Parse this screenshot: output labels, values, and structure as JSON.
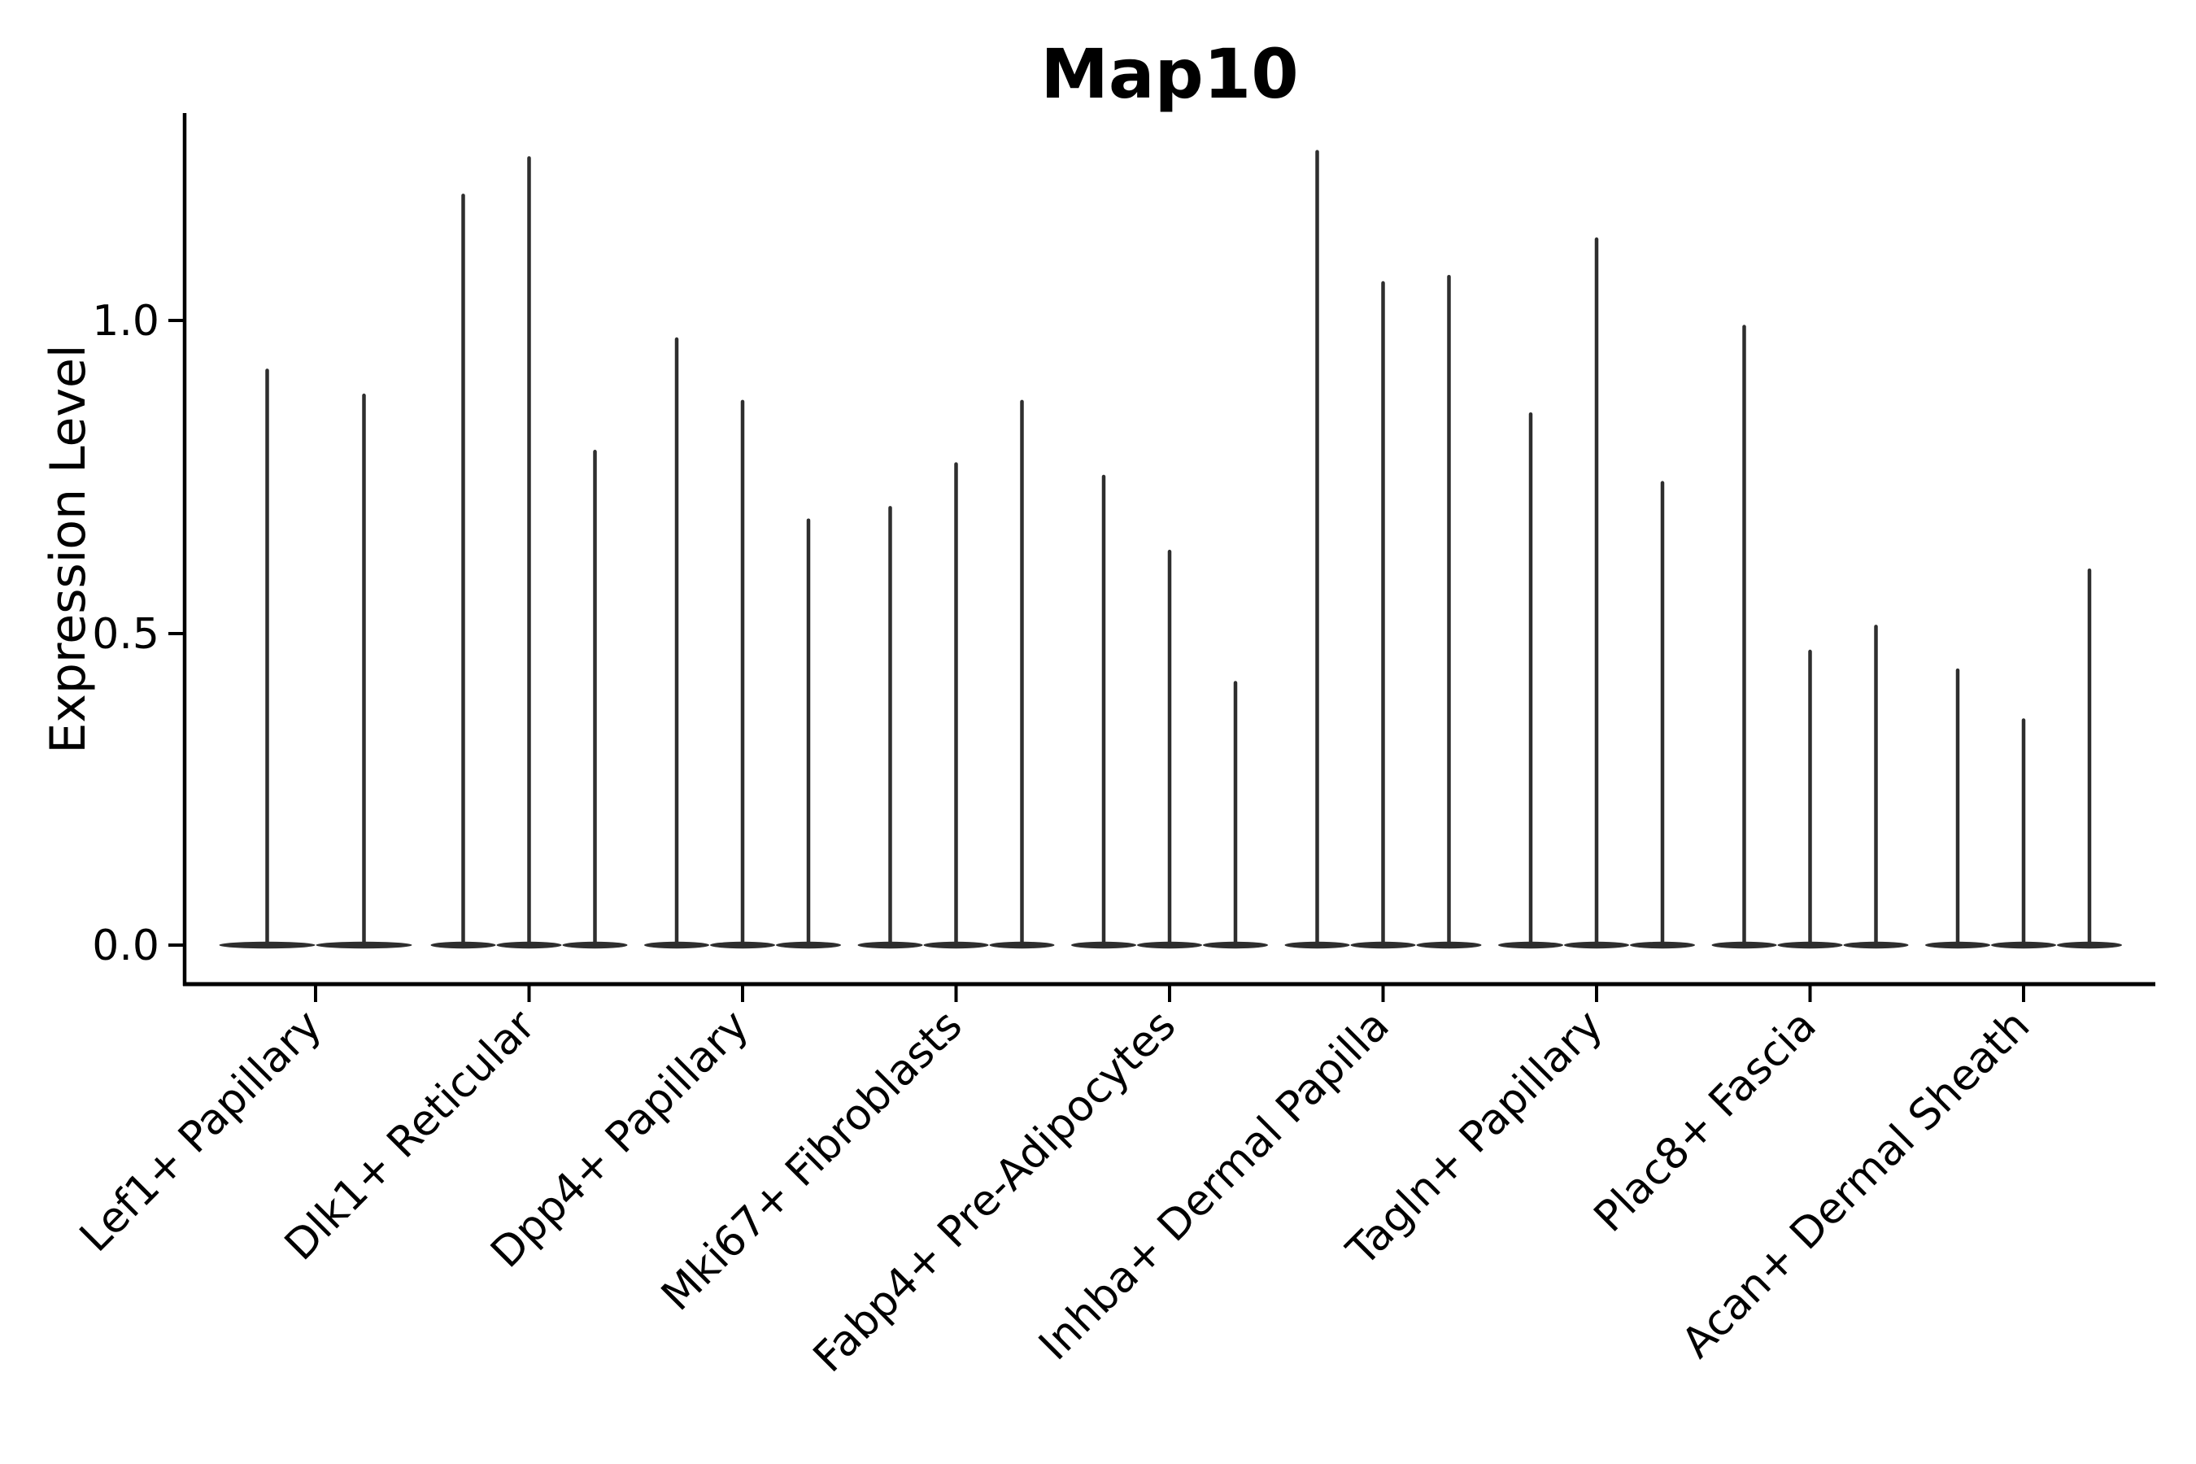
{
  "chart_data": {
    "type": "violin",
    "title": "Map10",
    "ylabel": "Expression Level",
    "xlabel": "",
    "ytick_labels": [
      "0.0",
      "0.5",
      "1.0"
    ],
    "ytick_values": [
      0.0,
      0.5,
      1.0
    ],
    "ylim": [
      -0.06,
      1.33
    ],
    "grid": false,
    "legend": "none",
    "violin_baseline_value": 0.0,
    "colors": {
      "violin": "#2e2e2e",
      "axis": "#000000",
      "background": "#ffffff"
    },
    "groups": [
      {
        "label": "Lef1+ Papillary",
        "violin_maxima": [
          0.92,
          0.88
        ]
      },
      {
        "label": "Dlk1+ Reticular",
        "violin_maxima": [
          1.2,
          1.26,
          0.79
        ]
      },
      {
        "label": "Dpp4+ Papillary",
        "violin_maxima": [
          0.97,
          0.87,
          0.68
        ]
      },
      {
        "label": "Mki67+ Fibroblasts",
        "violin_maxima": [
          0.7,
          0.77,
          0.87
        ]
      },
      {
        "label": "Fabp4+ Pre-Adipocytes",
        "violin_maxima": [
          0.75,
          0.63,
          0.42
        ]
      },
      {
        "label": "Inhba+ Dermal Papilla",
        "violin_maxima": [
          1.27,
          1.06,
          1.07
        ]
      },
      {
        "label": "Tagln+ Papillary",
        "violin_maxima": [
          0.85,
          1.13,
          0.74
        ]
      },
      {
        "label": "Plac8+ Fascia",
        "violin_maxima": [
          0.99,
          0.47,
          0.51
        ]
      },
      {
        "label": "Acan+ Dermal Sheath",
        "violin_maxima": [
          0.44,
          0.36,
          0.6
        ]
      }
    ]
  }
}
